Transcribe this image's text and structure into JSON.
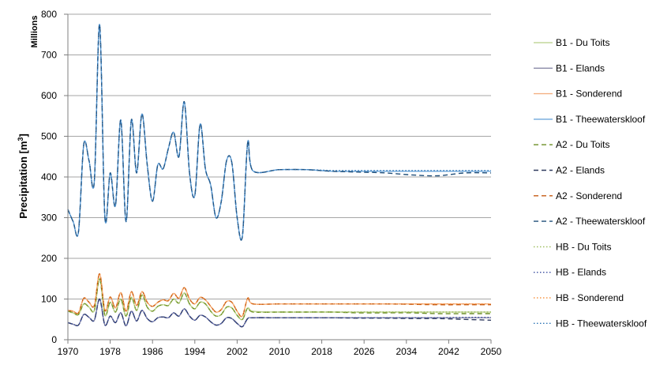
{
  "chart_data": {
    "type": "line",
    "ylabel": "Precipitation [m³]",
    "ylabel_main": "Precipitation [m",
    "ylabel_sup": "3",
    "ylabel_tail": "]",
    "y_unit_label": "Millions",
    "xlim": [
      1970,
      2050
    ],
    "ylim": [
      0,
      800
    ],
    "x_ticks": [
      "1970",
      "1978",
      "1986",
      "1994",
      "2002",
      "2010",
      "2018",
      "2026",
      "2034",
      "2042",
      "2050"
    ],
    "y_ticks": [
      "0",
      "100",
      "200",
      "300",
      "400",
      "500",
      "600",
      "700",
      "800"
    ],
    "grid": "horizontal",
    "legend_position": "right",
    "x": [
      1970,
      1971,
      1972,
      1973,
      1974,
      1975,
      1976,
      1977,
      1978,
      1979,
      1980,
      1981,
      1982,
      1983,
      1984,
      1985,
      1986,
      1987,
      1988,
      1989,
      1990,
      1991,
      1992,
      1993,
      1994,
      1995,
      1996,
      1997,
      1998,
      1999,
      2000,
      2001,
      2002,
      2003,
      2004,
      2005,
      2010,
      2015,
      2020,
      2025,
      2030,
      2035,
      2040,
      2045,
      2050
    ],
    "series": [
      {
        "name": "B1 - Du Toits",
        "color": "#c4d79b",
        "dash": "solid",
        "values": [
          70,
          66,
          62,
          88,
          80,
          72,
          150,
          60,
          92,
          68,
          100,
          58,
          104,
          72,
          110,
          80,
          70,
          82,
          86,
          84,
          100,
          90,
          115,
          88,
          76,
          92,
          88,
          70,
          58,
          62,
          80,
          78,
          60,
          50,
          78,
          70,
          68,
          68,
          68,
          68,
          68,
          68,
          68,
          68,
          68
        ]
      },
      {
        "name": "B1 - Elands",
        "color": "#8a8aa8",
        "dash": "solid",
        "values": [
          42,
          38,
          36,
          62,
          55,
          48,
          100,
          36,
          58,
          42,
          66,
          34,
          70,
          46,
          72,
          52,
          44,
          54,
          56,
          54,
          66,
          58,
          76,
          58,
          48,
          60,
          56,
          44,
          36,
          40,
          54,
          52,
          40,
          32,
          52,
          54,
          54,
          54,
          54,
          54,
          54,
          54,
          54,
          54,
          54
        ]
      },
      {
        "name": "B1 - Sonderend",
        "color": "#f4b183",
        "dash": "solid",
        "values": [
          72,
          70,
          66,
          102,
          92,
          84,
          162,
          72,
          105,
          78,
          116,
          70,
          118,
          84,
          118,
          92,
          82,
          92,
          98,
          96,
          114,
          102,
          128,
          100,
          88,
          104,
          98,
          82,
          68,
          74,
          94,
          92,
          70,
          58,
          102,
          88,
          88,
          88,
          88,
          88,
          88,
          88,
          88,
          88,
          88
        ]
      },
      {
        "name": "B1 - Theewaterskloof",
        "color": "#6fa8dc",
        "dash": "solid",
        "values": [
          320,
          290,
          265,
          480,
          440,
          390,
          775,
          300,
          410,
          330,
          540,
          290,
          540,
          410,
          555,
          430,
          340,
          430,
          420,
          470,
          510,
          450,
          585,
          410,
          355,
          530,
          420,
          380,
          300,
          340,
          440,
          435,
          300,
          255,
          485,
          415,
          418,
          418,
          414,
          414,
          414,
          414,
          414,
          414,
          414
        ]
      },
      {
        "name": "A2 - Du Toits",
        "color": "#6b8e23",
        "dash": "6,4",
        "values": [
          70,
          66,
          62,
          88,
          80,
          72,
          150,
          60,
          92,
          68,
          100,
          58,
          104,
          72,
          110,
          80,
          70,
          82,
          86,
          84,
          100,
          90,
          115,
          88,
          76,
          92,
          88,
          70,
          58,
          62,
          80,
          78,
          60,
          50,
          78,
          68,
          68,
          68,
          68,
          66,
          66,
          66,
          64,
          64,
          64
        ]
      },
      {
        "name": "A2 - Elands",
        "color": "#2f3a5f",
        "dash": "6,4",
        "values": [
          42,
          38,
          36,
          62,
          55,
          48,
          100,
          36,
          58,
          42,
          66,
          34,
          70,
          46,
          72,
          52,
          44,
          54,
          56,
          54,
          66,
          58,
          76,
          58,
          48,
          60,
          56,
          44,
          36,
          40,
          54,
          52,
          40,
          32,
          52,
          54,
          54,
          54,
          54,
          53,
          53,
          52,
          52,
          50,
          48
        ]
      },
      {
        "name": "A2 - Sonderend",
        "color": "#c55a11",
        "dash": "6,4",
        "values": [
          72,
          70,
          66,
          102,
          92,
          84,
          162,
          72,
          105,
          78,
          116,
          70,
          118,
          84,
          118,
          92,
          82,
          92,
          98,
          96,
          114,
          102,
          128,
          100,
          88,
          104,
          98,
          82,
          68,
          74,
          94,
          92,
          70,
          58,
          102,
          88,
          88,
          88,
          88,
          88,
          88,
          87,
          86,
          86,
          86
        ]
      },
      {
        "name": "A2 - Theewaterskloof",
        "color": "#1f4e79",
        "dash": "6,4",
        "values": [
          320,
          290,
          265,
          480,
          440,
          390,
          775,
          300,
          410,
          330,
          540,
          290,
          540,
          410,
          555,
          430,
          340,
          430,
          420,
          470,
          510,
          450,
          585,
          410,
          355,
          530,
          420,
          380,
          300,
          340,
          440,
          435,
          300,
          255,
          485,
          415,
          418,
          418,
          414,
          412,
          410,
          405,
          403,
          410,
          410
        ]
      },
      {
        "name": "HB - Du Toits",
        "color": "#9bbb59",
        "dash": "1.5,2.5",
        "values": [
          70,
          66,
          62,
          88,
          80,
          72,
          150,
          60,
          92,
          68,
          100,
          58,
          104,
          72,
          110,
          80,
          70,
          82,
          86,
          84,
          100,
          90,
          115,
          88,
          76,
          92,
          88,
          70,
          58,
          62,
          80,
          78,
          60,
          50,
          78,
          68,
          68,
          68,
          68,
          68,
          68,
          68,
          68,
          68,
          68
        ]
      },
      {
        "name": "HB - Elands",
        "color": "#3b4ea0",
        "dash": "1.5,2.5",
        "values": [
          42,
          38,
          36,
          62,
          55,
          48,
          100,
          36,
          58,
          42,
          66,
          34,
          70,
          46,
          72,
          52,
          44,
          54,
          56,
          54,
          66,
          58,
          76,
          58,
          48,
          60,
          56,
          44,
          36,
          40,
          54,
          52,
          40,
          32,
          52,
          54,
          54,
          54,
          54,
          54,
          54,
          54,
          54,
          55,
          55
        ]
      },
      {
        "name": "HB - Sonderend",
        "color": "#f79646",
        "dash": "1.5,2.5",
        "values": [
          72,
          70,
          66,
          102,
          92,
          84,
          162,
          72,
          105,
          78,
          116,
          70,
          118,
          84,
          118,
          92,
          82,
          92,
          98,
          96,
          114,
          102,
          128,
          100,
          88,
          104,
          98,
          82,
          68,
          74,
          94,
          92,
          70,
          58,
          102,
          88,
          88,
          88,
          88,
          88,
          88,
          88,
          88,
          88,
          88
        ]
      },
      {
        "name": "HB - Theewaterskloof",
        "color": "#2e75b6",
        "dash": "1.5,2.5",
        "values": [
          320,
          290,
          265,
          480,
          440,
          390,
          775,
          300,
          410,
          330,
          540,
          290,
          540,
          410,
          555,
          430,
          340,
          430,
          420,
          470,
          510,
          450,
          585,
          410,
          355,
          530,
          420,
          380,
          300,
          340,
          440,
          435,
          300,
          255,
          485,
          415,
          418,
          418,
          416,
          416,
          416,
          416,
          416,
          416,
          416
        ]
      }
    ]
  }
}
